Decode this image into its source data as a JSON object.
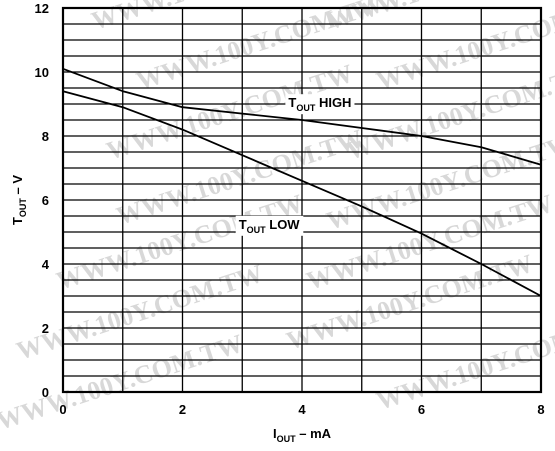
{
  "watermark": "WWW.100Y.COM.TW",
  "chart_data": {
    "type": "line",
    "x_ticks": [
      "0",
      "2",
      "4",
      "6",
      "8"
    ],
    "y_ticks": [
      "0",
      "2",
      "4",
      "6",
      "8",
      "10",
      "12"
    ],
    "xlim": [
      0,
      8
    ],
    "ylim": [
      0,
      12
    ],
    "x_minor_step": 1,
    "y_minor_step": 1,
    "grid": true,
    "xlabel": {
      "main": "I",
      "sub": "OUT",
      "suffix": " – mA"
    },
    "ylabel": {
      "main": "T",
      "sub": "OUT",
      "suffix": " – V"
    },
    "series": [
      {
        "label_main": "T",
        "label_sub": "OUT",
        "label_suffix": " HIGH",
        "x": [
          0,
          1,
          2,
          3,
          4,
          5,
          6,
          7,
          8
        ],
        "y": [
          10.1,
          9.4,
          8.9,
          8.7,
          8.5,
          8.25,
          8.0,
          7.65,
          7.1
        ]
      },
      {
        "label_main": "T",
        "label_sub": "OUT",
        "label_suffix": " LOW",
        "x": [
          0,
          1,
          2,
          3,
          4,
          5,
          6,
          7,
          8
        ],
        "y": [
          9.4,
          8.9,
          8.2,
          7.4,
          6.6,
          5.8,
          4.95,
          4.0,
          3.0
        ]
      }
    ]
  }
}
